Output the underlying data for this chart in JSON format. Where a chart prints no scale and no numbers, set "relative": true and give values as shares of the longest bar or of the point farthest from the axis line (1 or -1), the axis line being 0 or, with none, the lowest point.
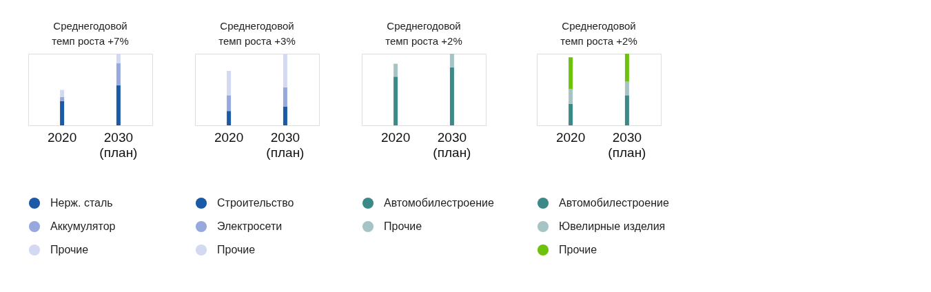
{
  "chart_data": [
    {
      "type": "bar",
      "title": "Среднегодовой\nтемп роста +7%",
      "categories": [
        "2020",
        "2030\n(план)"
      ],
      "stacked": true,
      "relative": true,
      "grid": false,
      "legend": "bottom",
      "tick_labels": "x",
      "series": [
        {
          "name": "Нерж. сталь",
          "color": "#1a5aa6",
          "values": [
            0.34,
            0.56
          ]
        },
        {
          "name": "Аккумулятор",
          "color": "#97a8dc",
          "values": [
            0.055,
            0.31
          ]
        },
        {
          "name": "Прочие",
          "color": "#d3d8f3",
          "values": [
            0.1,
            0.13
          ]
        }
      ]
    },
    {
      "type": "bar",
      "title": "Среднегодовой\nтемп роста +3%",
      "categories": [
        "2020",
        "2030\n(план)"
      ],
      "stacked": true,
      "relative": true,
      "grid": false,
      "legend": "bottom",
      "tick_labels": "x",
      "series": [
        {
          "name": "Строительство",
          "color": "#1a5aa6",
          "values": [
            0.2,
            0.26
          ]
        },
        {
          "name": "Электросети",
          "color": "#97a8dc",
          "values": [
            0.22,
            0.27
          ]
        },
        {
          "name": "Прочие",
          "color": "#d3d8f3",
          "values": [
            0.34,
            0.47
          ]
        }
      ]
    },
    {
      "type": "bar",
      "title": "Среднегодовой\nтемп роста +2%",
      "categories": [
        "2020",
        "2030\n(план)"
      ],
      "stacked": true,
      "relative": true,
      "grid": false,
      "legend": "bottom",
      "tick_labels": "x",
      "series": [
        {
          "name": "Автомобилестроение",
          "color": "#3c8a87",
          "values": [
            0.68,
            0.81
          ]
        },
        {
          "name": "Прочие",
          "color": "#a6c4c4",
          "values": [
            0.18,
            0.19
          ]
        }
      ]
    },
    {
      "type": "bar",
      "title": "Среднегодовой\nтемп роста +2%",
      "categories": [
        "2020",
        "2030\n(план)"
      ],
      "stacked": true,
      "relative": true,
      "grid": false,
      "legend": "bottom",
      "tick_labels": "x",
      "series": [
        {
          "name": "Автомобилестроение",
          "color": "#3c8a87",
          "values": [
            0.3,
            0.42
          ]
        },
        {
          "name": "Ювелирные изделия",
          "color": "#a6c4c4",
          "values": [
            0.21,
            0.19
          ]
        },
        {
          "name": "Прочие",
          "color": "#6cc20c",
          "values": [
            0.44,
            0.39
          ]
        }
      ]
    }
  ]
}
